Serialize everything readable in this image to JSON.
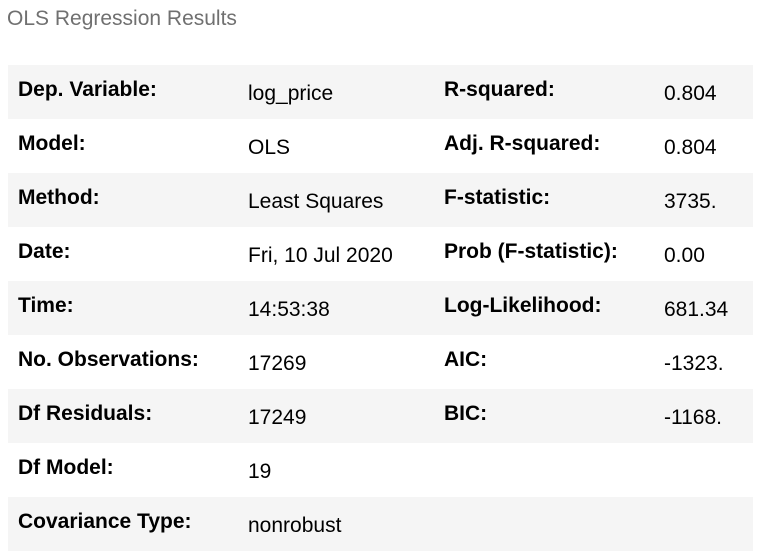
{
  "caption": "OLS Regression Results",
  "rows": [
    {
      "left_label": "Dep. Variable:",
      "left_value": "log_price",
      "right_label": "R-squared:",
      "right_value": "0.804"
    },
    {
      "left_label": "Model:",
      "left_value": "OLS",
      "right_label": "Adj. R-squared:",
      "right_value": "0.804"
    },
    {
      "left_label": "Method:",
      "left_value": "Least Squares",
      "right_label": "F-statistic:",
      "right_value": "3735."
    },
    {
      "left_label": "Date:",
      "left_value": "Fri, 10 Jul 2020",
      "right_label": "Prob (F-statistic):",
      "right_value": "0.00"
    },
    {
      "left_label": "Time:",
      "left_value": "14:53:38",
      "right_label": "Log-Likelihood:",
      "right_value": "681.34"
    },
    {
      "left_label": "No. Observations:",
      "left_value": "17269",
      "right_label": "AIC:",
      "right_value": "-1323."
    },
    {
      "left_label": "Df Residuals:",
      "left_value": "17249",
      "right_label": "BIC:",
      "right_value": "-1168."
    },
    {
      "left_label": "Df Model:",
      "left_value": "19",
      "right_label": "",
      "right_value": ""
    },
    {
      "left_label": "Covariance Type:",
      "left_value": "nonrobust",
      "right_label": "",
      "right_value": ""
    }
  ]
}
